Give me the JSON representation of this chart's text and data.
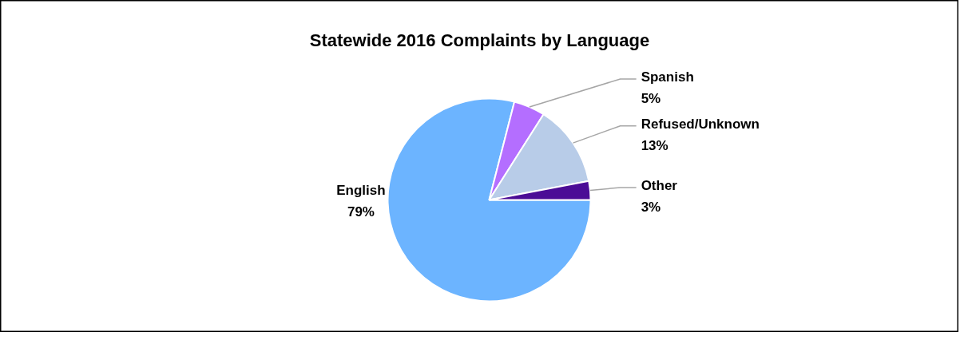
{
  "chart_data": {
    "type": "pie",
    "title": "Statewide 2016 Complaints by Language",
    "categories": [
      "English",
      "Spanish",
      "Refused/Unknown",
      "Other"
    ],
    "values": [
      79,
      5,
      13,
      3
    ],
    "value_labels": [
      "79%",
      "5%",
      "13%",
      "3%"
    ],
    "colors": [
      "#6cb4ff",
      "#b46eff",
      "#b8cce8",
      "#4b0c96"
    ]
  }
}
